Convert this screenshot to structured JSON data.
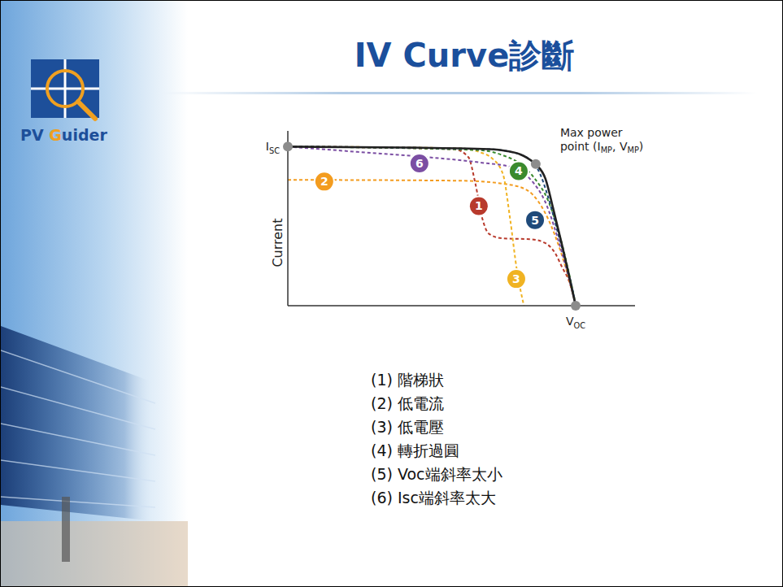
{
  "slide": {
    "title": "IV Curve診斷",
    "logo": "PV Guider"
  },
  "chart_data": {
    "type": "line",
    "y_label": "Current",
    "xlim": [
      0,
      100
    ],
    "ylim": [
      0,
      100
    ],
    "xticks": [],
    "yticks": [],
    "tick_labels": false,
    "grid": false,
    "series": [
      {
        "name": "1",
        "caption": "(1) 階梯狀",
        "color": "#b83a2c",
        "line_style": "dashed",
        "x": [
          0,
          48,
          52,
          54,
          56,
          58,
          62,
          70,
          74,
          77,
          79,
          81,
          83
        ],
        "values": [
          91,
          89.5,
          85,
          70,
          50,
          41,
          38.5,
          38,
          36,
          30,
          22,
          14,
          0
        ]
      },
      {
        "name": "2",
        "caption": "(2) 低電流",
        "color": "#f39c1f",
        "line_style": "dashed",
        "x": [
          0,
          50,
          63,
          69,
          72,
          76,
          80,
          83
        ],
        "values": [
          72,
          71.5,
          69.5,
          66,
          60,
          45,
          22,
          0
        ]
      },
      {
        "name": "3",
        "caption": "(3) 低電壓",
        "color": "#f0b323",
        "line_style": "dashed",
        "x": [
          0,
          50,
          55,
          59,
          62,
          64,
          66,
          68
        ],
        "values": [
          91,
          90,
          88,
          84,
          75,
          50,
          20,
          0
        ]
      },
      {
        "name": "4",
        "caption": "(4) 轉折過圓",
        "color": "#3a8a2e",
        "line_style": "dashed",
        "x": [
          0,
          55,
          62,
          67,
          71,
          75,
          79,
          83
        ],
        "values": [
          91,
          89,
          86,
          81,
          73,
          60,
          35,
          0
        ]
      },
      {
        "name": "5",
        "caption": "(5) Voc端斜率太小",
        "color": "#1f4a7a",
        "line_style": "dashed",
        "x": [
          0,
          58,
          67,
          72,
          75,
          78,
          81,
          83
        ],
        "values": [
          91,
          89.5,
          86.5,
          78,
          62,
          40,
          18,
          0
        ]
      },
      {
        "name": "6",
        "caption": "(6) Isc端斜率太大",
        "color": "#7b4ea3",
        "line_style": "dashed",
        "x": [
          0,
          20,
          40,
          55,
          65,
          70,
          74,
          79,
          83
        ],
        "values": [
          91,
          88,
          85,
          82,
          79,
          72,
          60,
          30,
          0
        ]
      },
      {
        "color": "#222222",
        "line_style": "solid",
        "x": [
          0,
          34,
          58,
          63,
          67,
          69,
          71.4,
          74.2,
          76.5,
          78.9,
          82.9
        ],
        "values": [
          91,
          90.5,
          89.5,
          88.5,
          86.5,
          84.5,
          81,
          72.6,
          55,
          35.3,
          0
        ]
      }
    ],
    "points": [
      {
        "x": 0,
        "y": 91,
        "text": [
          [
            {
              "t": "I"
            },
            {
              "sub": "SC"
            }
          ]
        ]
      },
      {
        "x": 82.9,
        "y": 0,
        "text": [
          [
            {
              "t": "V"
            },
            {
              "sub": "OC"
            }
          ]
        ]
      },
      {
        "x": 71.4,
        "y": 81,
        "text": [
          [
            {
              "t": "Max power"
            }
          ],
          [
            {
              "t": "point (I"
            },
            {
              "sub": "MP"
            },
            {
              "t": ", V"
            },
            {
              "sub": "MP"
            },
            {
              "t": ")"
            }
          ]
        ]
      }
    ]
  }
}
